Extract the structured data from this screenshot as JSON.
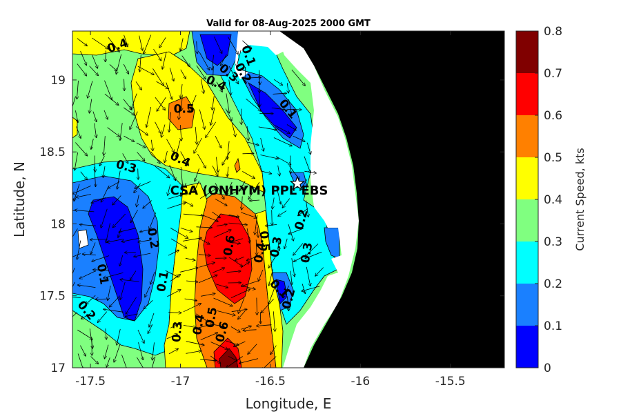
{
  "chart_data": {
    "type": "heatmap",
    "title": "Valid for 08-Aug-2025 2000 GMT",
    "xlabel": "Longitude, E",
    "ylabel": "Latitude, N",
    "xlim": [
      -17.6,
      -15.2
    ],
    "ylim": [
      17.0,
      19.34
    ],
    "xticks": [
      "-17.5",
      "-17",
      "-16.5",
      "-16",
      "-15.5"
    ],
    "xtick_values": [
      -17.5,
      -17.0,
      -16.5,
      -16.0,
      -15.5
    ],
    "yticks": [
      "17",
      "17.5",
      "18",
      "18.5",
      "19"
    ],
    "ytick_values": [
      17.0,
      17.5,
      18.0,
      18.5,
      19.0
    ],
    "colorbar": {
      "label": "Current Speed, kts",
      "ticks": [
        "0",
        "0.1",
        "0.2",
        "0.3",
        "0.4",
        "0.5",
        "0.6",
        "0.7",
        "0.8"
      ],
      "levels": [
        0,
        0.1,
        0.2,
        0.3,
        0.4,
        0.5,
        0.6,
        0.7,
        0.8
      ],
      "colors": [
        "#0000ff",
        "#1a80ff",
        "#00ffff",
        "#80ff80",
        "#ffff00",
        "#ff8000",
        "#ff0000",
        "#800000"
      ]
    },
    "land_color": "#000000",
    "site": {
      "name": "CSA (ONHYM) PPL EBS",
      "lon": -16.35,
      "lat": 18.28
    },
    "contour_labels": [
      {
        "text": "0.4",
        "lon": -17.35,
        "lat": 19.24,
        "rot": -20
      },
      {
        "text": "0.1",
        "lon": -16.62,
        "lat": 19.17,
        "rot": 70
      },
      {
        "text": "0.2",
        "lon": -16.65,
        "lat": 19.05,
        "rot": 60
      },
      {
        "text": "0.3",
        "lon": -16.73,
        "lat": 19.05,
        "rot": 40
      },
      {
        "text": "0.4",
        "lon": -16.8,
        "lat": 18.98,
        "rot": 25
      },
      {
        "text": "0.1",
        "lon": -16.4,
        "lat": 18.8,
        "rot": 50
      },
      {
        "text": "0.5",
        "lon": -16.98,
        "lat": 18.8,
        "rot": 0
      },
      {
        "text": "0.4",
        "lon": -17.0,
        "lat": 18.45,
        "rot": 25
      },
      {
        "text": "0.3",
        "lon": -17.3,
        "lat": 18.4,
        "rot": 15
      },
      {
        "text": "0.6",
        "lon": -16.73,
        "lat": 17.85,
        "rot": -80
      },
      {
        "text": "0.5",
        "lon": -16.53,
        "lat": 17.88,
        "rot": 85
      },
      {
        "text": "0.4",
        "lon": -16.56,
        "lat": 17.8,
        "rot": -80
      },
      {
        "text": "0.3",
        "lon": -16.47,
        "lat": 17.84,
        "rot": -80
      },
      {
        "text": "0.2",
        "lon": -16.33,
        "lat": 18.03,
        "rot": -75
      },
      {
        "text": "0.3",
        "lon": -16.3,
        "lat": 17.8,
        "rot": -80
      },
      {
        "text": "0.1",
        "lon": -17.43,
        "lat": 17.65,
        "rot": 80
      },
      {
        "text": "0.2",
        "lon": -17.15,
        "lat": 17.9,
        "rot": 80
      },
      {
        "text": "0.1",
        "lon": -17.1,
        "lat": 17.6,
        "rot": -80
      },
      {
        "text": "0.2",
        "lon": -17.52,
        "lat": 17.4,
        "rot": 50
      },
      {
        "text": "0.3",
        "lon": -17.02,
        "lat": 17.25,
        "rot": -85
      },
      {
        "text": "0.4",
        "lon": -16.9,
        "lat": 17.3,
        "rot": -80
      },
      {
        "text": "0.5",
        "lon": -16.83,
        "lat": 17.35,
        "rot": -80
      },
      {
        "text": "0.6",
        "lon": -16.77,
        "lat": 17.25,
        "rot": -75
      },
      {
        "text": "0.1",
        "lon": -16.45,
        "lat": 17.55,
        "rot": 45
      },
      {
        "text": "0.2",
        "lon": -16.4,
        "lat": 17.48,
        "rot": -75
      }
    ]
  }
}
